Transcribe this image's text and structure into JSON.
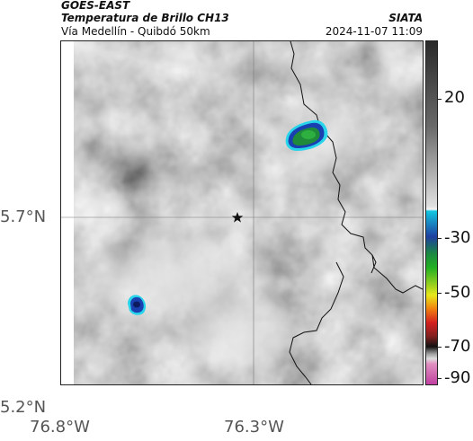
{
  "header": {
    "title_main": "GOES-EAST",
    "title_sub": "Temperatura de Brillo CH13",
    "location": "Vía Medellín - Quibdó 50km",
    "organization": "SIATA",
    "datetime": "2024-11-07 11:09"
  },
  "axes": {
    "x_ticks": [
      "76.8°W",
      "76.3°W"
    ],
    "y_ticks": [
      "5.7°N",
      "5.2°N"
    ]
  },
  "colorbar": {
    "ticks": [
      "20",
      "-30",
      "-50",
      "-70",
      "-90"
    ],
    "colors": {
      "gray_light": "#e0e0e0",
      "gray_dark": "#2a2a2a",
      "cyan": "#12c6e0",
      "blue": "#1f3fa0",
      "green": "#22b022",
      "yellow": "#e8e81a",
      "red": "#d42020",
      "black": "#111111",
      "magenta": "#c040a0"
    }
  },
  "map": {
    "marker": "star-icon",
    "cloud_colors": {
      "outer": "#1a3fb0",
      "inner": "#1e8a3a",
      "edge": "#28d4ea"
    }
  }
}
